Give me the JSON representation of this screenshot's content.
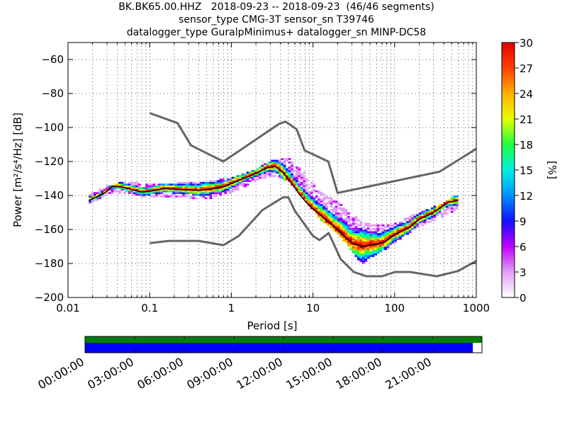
{
  "title": {
    "line1": "BK.BK65.00.HHZ   2018-09-23 -- 2018-09-23  (46/46 segments)",
    "line2": "sensor_type CMG-3T sensor_sn T39746",
    "line3": "datalogger_type GuralpMinimus+ datalogger_sn MINP-DC58"
  },
  "chart_data": {
    "type": "heatmap",
    "xlabel": "Period [s]",
    "ylabel": "Power [m²/s⁴/Hz] [dB]",
    "x_scale": "log",
    "xlim": [
      0.01,
      1000
    ],
    "ylim": [
      -200,
      -50
    ],
    "x_tick_values": [
      0.01,
      0.1,
      1,
      10,
      100,
      1000
    ],
    "x_tick_labels": [
      "0.01",
      "0.1",
      "1",
      "10",
      "100",
      "1000"
    ],
    "y_tick_values": [
      -200,
      -180,
      -160,
      -140,
      -120,
      -100,
      -80,
      -60
    ],
    "y_tick_labels": [
      "−200",
      "−180",
      "−160",
      "−140",
      "−120",
      "−100",
      "−80",
      "−60"
    ],
    "grid": true,
    "colorbar": {
      "label": "[%]",
      "range": [
        0,
        30
      ],
      "tick_labels": [
        "0",
        "3",
        "6",
        "9",
        "12",
        "15",
        "18",
        "21",
        "24",
        "27",
        "30"
      ],
      "colors": [
        "#ffffff",
        "#e29ff5",
        "#c000ff",
        "#1010ff",
        "#0090ff",
        "#00f0e0",
        "#20ff40",
        "#e8ff00",
        "#ffb000",
        "#ff4000",
        "#e00000"
      ]
    },
    "noise_models": [
      {
        "id": "NHNM",
        "x": [
          0.1,
          0.22,
          0.32,
          0.8,
          3.8,
          4.6,
          6.3,
          7.9,
          15.4,
          20,
          354.8,
          1000
        ],
        "y": [
          -91.5,
          -97.4,
          -110.5,
          -120,
          -98,
          -96.5,
          -101,
          -113.5,
          -120,
          -138.5,
          -126,
          -112.5
        ]
      },
      {
        "id": "NLNM",
        "x": [
          0.1,
          0.17,
          0.4,
          0.8,
          1.24,
          2.4,
          4.3,
          5,
          6,
          10,
          12,
          15.6,
          21.9,
          31.6,
          45,
          70,
          101,
          154,
          328,
          600,
          1000
        ],
        "y": [
          -168,
          -166.7,
          -166.7,
          -169.2,
          -163.7,
          -148.6,
          -141.1,
          -141.1,
          -149,
          -163.8,
          -166.2,
          -162.1,
          -177.5,
          -185,
          -187.5,
          -187.5,
          -185,
          -185,
          -187.5,
          -184.4,
          -178.5
        ]
      }
    ],
    "median_curve": {
      "x": [
        0.018,
        0.022,
        0.027,
        0.031,
        0.035,
        0.045,
        0.06,
        0.08,
        0.1,
        0.15,
        0.25,
        0.4,
        0.6,
        0.8,
        1.0,
        1.4,
        2.0,
        2.8,
        3.5,
        4.3,
        5.5,
        7,
        9,
        12,
        16,
        22,
        30,
        40,
        55,
        75,
        100,
        150,
        200,
        300,
        450,
        600
      ],
      "y": [
        -143,
        -141,
        -139,
        -137,
        -134.5,
        -135,
        -136.5,
        -138,
        -137.5,
        -136,
        -136.5,
        -137,
        -136,
        -135,
        -133,
        -130,
        -127,
        -123.5,
        -123,
        -126.5,
        -133,
        -140,
        -146,
        -151,
        -156,
        -162,
        -168,
        -170,
        -169,
        -167.5,
        -163,
        -159,
        -154,
        -150,
        -144,
        -143
      ]
    },
    "psd_spread": {
      "x": [
        0.018,
        0.03,
        0.05,
        0.1,
        0.2,
        0.5,
        1,
        2,
        3,
        5,
        8,
        12,
        20,
        30,
        40,
        60,
        100,
        200,
        400,
        600
      ],
      "upper": [
        -141,
        -136,
        -133,
        -135,
        -134,
        -133,
        -131,
        -126,
        -121,
        -119,
        -128,
        -139,
        -145,
        -152,
        -157,
        -159,
        -158,
        -151,
        -146,
        -140
      ],
      "lower": [
        -145,
        -139,
        -138,
        -141,
        -140,
        -142,
        -138,
        -131,
        -128,
        -131,
        -142,
        -153,
        -162,
        -172,
        -180,
        -174,
        -168,
        -158,
        -152,
        -147
      ]
    },
    "timeline": {
      "tick_labels": [
        "00:00:00",
        "03:00:00",
        "06:00:00",
        "09:00:00",
        "12:00:00",
        "15:00:00",
        "18:00:00",
        "21:00:00"
      ],
      "coverage_top_fraction": 1.0,
      "coverage_bottom_fraction": 0.977,
      "top_color": "#008000",
      "bottom_color": "#0000ff"
    }
  }
}
